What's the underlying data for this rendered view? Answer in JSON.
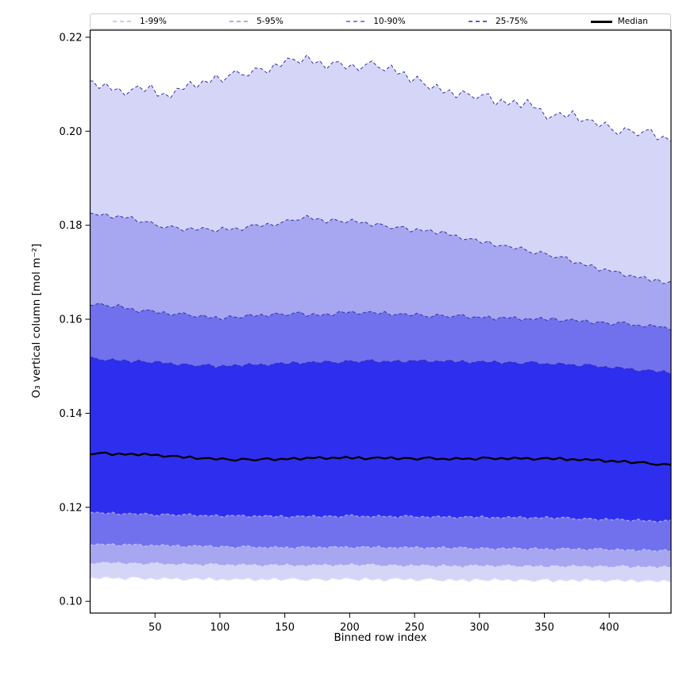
{
  "chart_data": {
    "type": "area",
    "subtype": "percentile-band-plot",
    "title": "",
    "xlabel": "Binned row index",
    "ylabel": "O₃ vertical column [mol m⁻²]",
    "xlim": [
      0,
      447.6
    ],
    "ylim": [
      0.0975,
      0.2215
    ],
    "grid": false,
    "legend_position": "top-expanded",
    "x_ticks": [
      {
        "v": 50,
        "label": "50"
      },
      {
        "v": 100,
        "label": "100"
      },
      {
        "v": 150,
        "label": "150"
      },
      {
        "v": 200,
        "label": "200"
      },
      {
        "v": 250,
        "label": "250"
      },
      {
        "v": 300,
        "label": "300"
      },
      {
        "v": 350,
        "label": "350"
      },
      {
        "v": 400,
        "label": "400"
      }
    ],
    "y_ticks": [
      {
        "v": 0.1,
        "label": "0.10"
      },
      {
        "v": 0.12,
        "label": "0.12"
      },
      {
        "v": 0.14,
        "label": "0.14"
      },
      {
        "v": 0.16,
        "label": "0.16"
      },
      {
        "v": 0.18,
        "label": "0.18"
      },
      {
        "v": 0.2,
        "label": "0.20"
      },
      {
        "v": 0.22,
        "label": "0.22"
      }
    ],
    "x_start": 2,
    "x_step": 5,
    "n_points": 90,
    "noise": [
      0.32,
      -0.61,
      0.78,
      -0.15,
      0.52,
      -0.88,
      0.12,
      0.69,
      -0.42,
      0.95,
      -0.71,
      0.24,
      -0.55,
      0.63,
      -0.08,
      0.81,
      -0.77,
      0.38,
      -0.29,
      0.97,
      -0.58,
      0.31,
      0.88,
      -0.21,
      -0.66,
      0.49,
      0.17,
      -0.92,
      0.58,
      -0.36,
      0.73,
      0.06,
      -0.81,
      0.91,
      -0.47,
      0.28,
      -0.99,
      0.44,
      0.76,
      -0.33,
      0.61,
      -0.72,
      0.19,
      0.86,
      -0.12,
      -0.64,
      0.7,
      -0.41,
      0.54,
      -0.89,
      0.79,
      0.02,
      -0.53,
      0.93,
      -0.26,
      0.46,
      -0.83,
      0.57,
      0.09,
      -0.68,
      0.35,
      0.84,
      -0.94,
      0.51,
      -0.31,
      0.67,
      -0.59,
      0.98,
      -0.14,
      0.41,
      -0.79,
      0.22,
      0.62,
      -0.48,
      0.89,
      -0.69,
      0.13,
      0.48,
      -0.38,
      0.82,
      -0.18,
      -0.87,
      0.66,
      0.27,
      -0.57,
      0.43,
      0.92,
      -0.76,
      0.16,
      -0.45,
      0.59,
      -0.96,
      0.5,
      0.07,
      0.83,
      -0.62,
      0.34,
      -0.23,
      0.87,
      -0.52,
      0.71,
      -0.91,
      0.04,
      0.64,
      -0.27,
      0.77,
      -0.74,
      0.39,
      0.21,
      -0.84,
      0.56,
      0.94,
      -0.44,
      0.11,
      -0.63,
      0.72,
      -0.19,
      0.29,
      -0.86,
      0.85,
      0.6,
      -0.51
    ],
    "series": [
      {
        "name": "p99",
        "percentile": 99,
        "noise_amp": 0.0012,
        "noise_offset": 0,
        "line_color": "#3333a8",
        "line_width": 1.0,
        "dash": "4,3",
        "trend": [
          [
            0,
            0.2105
          ],
          [
            20,
            0.2085
          ],
          [
            45,
            0.209
          ],
          [
            60,
            0.2075
          ],
          [
            80,
            0.21
          ],
          [
            100,
            0.211
          ],
          [
            120,
            0.2125
          ],
          [
            140,
            0.2135
          ],
          [
            160,
            0.2155
          ],
          [
            180,
            0.2145
          ],
          [
            200,
            0.2135
          ],
          [
            215,
            0.214
          ],
          [
            230,
            0.2135
          ],
          [
            250,
            0.211
          ],
          [
            270,
            0.2085
          ],
          [
            300,
            0.2075
          ],
          [
            320,
            0.206
          ],
          [
            340,
            0.2055
          ],
          [
            355,
            0.203
          ],
          [
            370,
            0.2035
          ],
          [
            390,
            0.2015
          ],
          [
            410,
            0.2
          ],
          [
            430,
            0.1995
          ],
          [
            447,
            0.1985
          ]
        ]
      },
      {
        "name": "p95",
        "percentile": 95,
        "noise_amp": 0.0006,
        "noise_offset": 13,
        "line_color": "#3333a8",
        "line_width": 1.0,
        "dash": "4,3",
        "trend": [
          [
            0,
            0.1822
          ],
          [
            25,
            0.1818
          ],
          [
            50,
            0.18
          ],
          [
            75,
            0.1792
          ],
          [
            100,
            0.179
          ],
          [
            125,
            0.1797
          ],
          [
            150,
            0.1805
          ],
          [
            165,
            0.1818
          ],
          [
            180,
            0.181
          ],
          [
            200,
            0.1808
          ],
          [
            220,
            0.1802
          ],
          [
            240,
            0.1793
          ],
          [
            260,
            0.1788
          ],
          [
            280,
            0.1778
          ],
          [
            300,
            0.1765
          ],
          [
            320,
            0.1755
          ],
          [
            340,
            0.1745
          ],
          [
            360,
            0.1732
          ],
          [
            380,
            0.1718
          ],
          [
            400,
            0.1702
          ],
          [
            420,
            0.169
          ],
          [
            435,
            0.1682
          ],
          [
            447,
            0.168
          ]
        ]
      },
      {
        "name": "p90",
        "percentile": 90,
        "noise_amp": 0.0005,
        "noise_offset": 29,
        "line_color": "#3333a8",
        "line_width": 1.0,
        "dash": "4,3",
        "trend": [
          [
            0,
            0.1632
          ],
          [
            20,
            0.1628
          ],
          [
            40,
            0.1618
          ],
          [
            60,
            0.1612
          ],
          [
            80,
            0.1608
          ],
          [
            100,
            0.1602
          ],
          [
            120,
            0.1606
          ],
          [
            140,
            0.161
          ],
          [
            160,
            0.1612
          ],
          [
            180,
            0.1608
          ],
          [
            200,
            0.1615
          ],
          [
            220,
            0.1613
          ],
          [
            240,
            0.161
          ],
          [
            260,
            0.1608
          ],
          [
            280,
            0.1606
          ],
          [
            300,
            0.1605
          ],
          [
            320,
            0.1602
          ],
          [
            340,
            0.16
          ],
          [
            360,
            0.16
          ],
          [
            380,
            0.1595
          ],
          [
            400,
            0.1592
          ],
          [
            420,
            0.1588
          ],
          [
            447,
            0.1582
          ]
        ]
      },
      {
        "name": "p75",
        "percentile": 75,
        "noise_amp": 0.0004,
        "noise_offset": 43,
        "line_color": "#3333a8",
        "line_width": 1.0,
        "dash": "4,3",
        "trend": [
          [
            0,
            0.1516
          ],
          [
            25,
            0.1512
          ],
          [
            50,
            0.1508
          ],
          [
            75,
            0.1503
          ],
          [
            100,
            0.15
          ],
          [
            130,
            0.1503
          ],
          [
            160,
            0.1507
          ],
          [
            200,
            0.151
          ],
          [
            240,
            0.1511
          ],
          [
            280,
            0.151
          ],
          [
            320,
            0.1508
          ],
          [
            360,
            0.1505
          ],
          [
            390,
            0.15
          ],
          [
            420,
            0.1493
          ],
          [
            447,
            0.1486
          ]
        ]
      },
      {
        "name": "median",
        "percentile": 50,
        "noise_amp": 0.0003,
        "noise_offset": 59,
        "line_color": "#000000",
        "line_width": 2.3,
        "dash": "",
        "trend": [
          [
            0,
            0.1315
          ],
          [
            25,
            0.1313
          ],
          [
            50,
            0.1311
          ],
          [
            75,
            0.1306
          ],
          [
            100,
            0.1302
          ],
          [
            130,
            0.1301
          ],
          [
            160,
            0.1304
          ],
          [
            200,
            0.1305
          ],
          [
            240,
            0.1304
          ],
          [
            280,
            0.1303
          ],
          [
            320,
            0.1304
          ],
          [
            360,
            0.1303
          ],
          [
            390,
            0.13
          ],
          [
            420,
            0.1295
          ],
          [
            447,
            0.129
          ]
        ]
      },
      {
        "name": "p25",
        "percentile": 25,
        "noise_amp": 0.0003,
        "noise_offset": 71,
        "line_color": "#9a9af2",
        "line_width": 1.6,
        "dash": "4,3",
        "trend": [
          [
            0,
            0.1188
          ],
          [
            40,
            0.1185
          ],
          [
            80,
            0.1183
          ],
          [
            120,
            0.1181
          ],
          [
            160,
            0.118
          ],
          [
            200,
            0.1181
          ],
          [
            240,
            0.118
          ],
          [
            280,
            0.1179
          ],
          [
            320,
            0.1178
          ],
          [
            360,
            0.1177
          ],
          [
            400,
            0.1174
          ],
          [
            447,
            0.117
          ]
        ]
      },
      {
        "name": "p10",
        "percentile": 10,
        "noise_amp": 0.0003,
        "noise_offset": 87,
        "line_color": "#b9b9f5",
        "line_width": 1.6,
        "dash": "4,3",
        "trend": [
          [
            0,
            0.1122
          ],
          [
            40,
            0.1119
          ],
          [
            80,
            0.1117
          ],
          [
            120,
            0.1115
          ],
          [
            160,
            0.1114
          ],
          [
            200,
            0.1115
          ],
          [
            240,
            0.1114
          ],
          [
            280,
            0.1113
          ],
          [
            320,
            0.1112
          ],
          [
            360,
            0.1111
          ],
          [
            400,
            0.111
          ],
          [
            447,
            0.1107
          ]
        ]
      },
      {
        "name": "p5",
        "percentile": 5,
        "noise_amp": 0.0003,
        "noise_offset": 101,
        "line_color": "#d4d4f8",
        "line_width": 1.6,
        "dash": "4,3",
        "trend": [
          [
            0,
            0.1082
          ],
          [
            40,
            0.108
          ],
          [
            80,
            0.1078
          ],
          [
            120,
            0.1077
          ],
          [
            160,
            0.1076
          ],
          [
            200,
            0.1077
          ],
          [
            240,
            0.1076
          ],
          [
            280,
            0.1075
          ],
          [
            320,
            0.1075
          ],
          [
            360,
            0.1074
          ],
          [
            400,
            0.1074
          ],
          [
            447,
            0.1072
          ]
        ]
      },
      {
        "name": "p1",
        "percentile": 1,
        "noise_amp": 0.0004,
        "noise_offset": 113,
        "line_color": "#eaeafc",
        "line_width": 1.6,
        "dash": "4,3",
        "trend": [
          [
            0,
            0.105
          ],
          [
            40,
            0.1048
          ],
          [
            80,
            0.1047
          ],
          [
            120,
            0.1046
          ],
          [
            160,
            0.1046
          ],
          [
            200,
            0.1047
          ],
          [
            240,
            0.1046
          ],
          [
            280,
            0.1045
          ],
          [
            320,
            0.1045
          ],
          [
            360,
            0.1044
          ],
          [
            400,
            0.1044
          ],
          [
            447,
            0.1042
          ]
        ]
      }
    ],
    "bands": [
      {
        "upper": "p99",
        "lower": "p1",
        "fill": "#d5d5f7",
        "label": "1-99%"
      },
      {
        "upper": "p95",
        "lower": "p5",
        "fill": "#a6a6f1",
        "label": "5-95%"
      },
      {
        "upper": "p90",
        "lower": "p10",
        "fill": "#7171ee",
        "label": "10-90%"
      },
      {
        "upper": "p75",
        "lower": "p25",
        "fill": "#2e2eef",
        "label": "25-75%"
      }
    ],
    "legend": [
      {
        "label": "1-99%",
        "color": "#ccccf2",
        "dashed": true
      },
      {
        "label": "5-95%",
        "color": "#adadf0",
        "dashed": true
      },
      {
        "label": "10-90%",
        "color": "#8282ee",
        "dashed": true
      },
      {
        "label": "25-75%",
        "color": "#5c5ce6",
        "dashed": true
      },
      {
        "label": "Median",
        "color": "#000000",
        "dashed": false
      }
    ],
    "colors": {
      "spine": "#000000",
      "background": "#ffffff",
      "upper_boundary_line": "#3333a8",
      "median_line": "#000000"
    }
  }
}
